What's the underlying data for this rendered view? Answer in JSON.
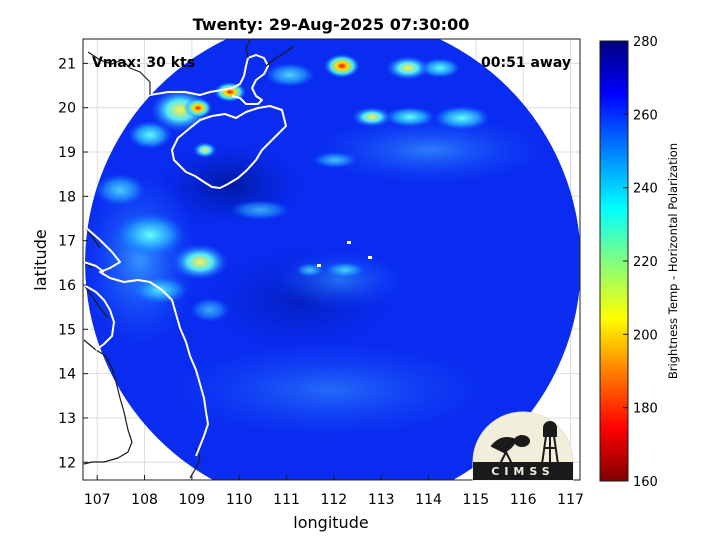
{
  "title": "Twenty: 29-Aug-2025 07:30:00",
  "overlay": {
    "vmax": "Vmax: 30 kts",
    "away": "00:51 away"
  },
  "axes": {
    "xlabel": "longitude",
    "ylabel": "latitude",
    "xlim": [
      106.7,
      117.2
    ],
    "ylim": [
      11.6,
      21.55
    ],
    "xticks": [
      "107",
      "108",
      "109",
      "110",
      "111",
      "112",
      "113",
      "114",
      "115",
      "116",
      "117"
    ],
    "yticks": [
      "12",
      "13",
      "14",
      "15",
      "16",
      "17",
      "18",
      "19",
      "20",
      "21"
    ],
    "grid": true
  },
  "colorbar": {
    "label": "Brightness Temp - Horizontal Polarization",
    "range": [
      160,
      280
    ],
    "ticks": [
      "280",
      "260",
      "240",
      "220",
      "200",
      "180",
      "160"
    ],
    "colormap": [
      "#800000",
      "#ff0000",
      "#ff8000",
      "#ffff00",
      "#80ff80",
      "#00ffff",
      "#0080ff",
      "#0000ff",
      "#000080"
    ]
  },
  "swath": {
    "center": {
      "lon": 112.0,
      "lat": 16.6
    },
    "base_color": "#0a2bf0"
  },
  "logo": {
    "text": "CIMSS"
  },
  "colors": {
    "land_outline": "#ffffff",
    "coast_outside": "#000000",
    "grid": "#dcdcdc"
  }
}
